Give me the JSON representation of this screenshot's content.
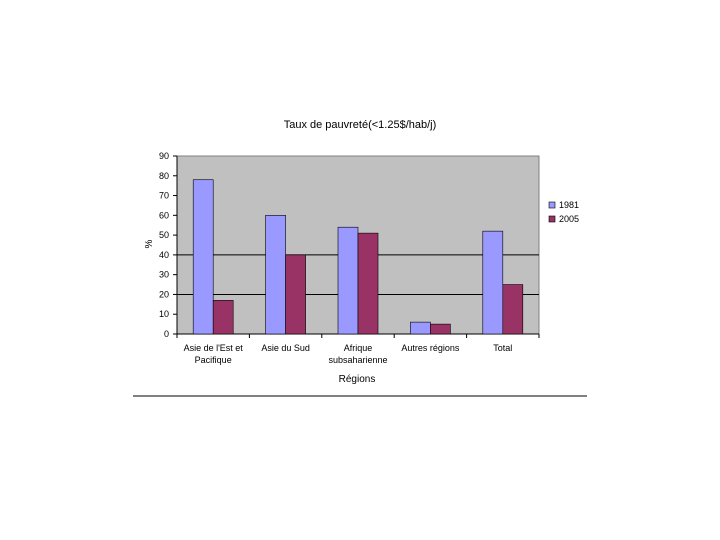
{
  "chart_data": {
    "type": "bar",
    "title": "Taux de pauvreté(<1.25$/hab/j)",
    "xlabel": "Régions",
    "ylabel": "%",
    "ylim": [
      0,
      90
    ],
    "yticks": [
      "0",
      "10",
      "20",
      "30",
      "40",
      "50",
      "60",
      "70",
      "80",
      "90"
    ],
    "grid": true,
    "legend_position": "right",
    "categories": [
      [
        "Asie de l'Est et",
        "Pacifique"
      ],
      [
        "Asie du Sud"
      ],
      [
        "Afrique",
        "subsaharienne"
      ],
      [
        "Autres régions"
      ],
      [
        "Total"
      ]
    ],
    "series": [
      {
        "name": "1981",
        "color": "#9999ff",
        "values": [
          78,
          60,
          54,
          6,
          52
        ]
      },
      {
        "name": "2005",
        "color": "#993366",
        "values": [
          17,
          40,
          51,
          5,
          25
        ]
      }
    ],
    "plot_background": "#c0c0c0"
  }
}
